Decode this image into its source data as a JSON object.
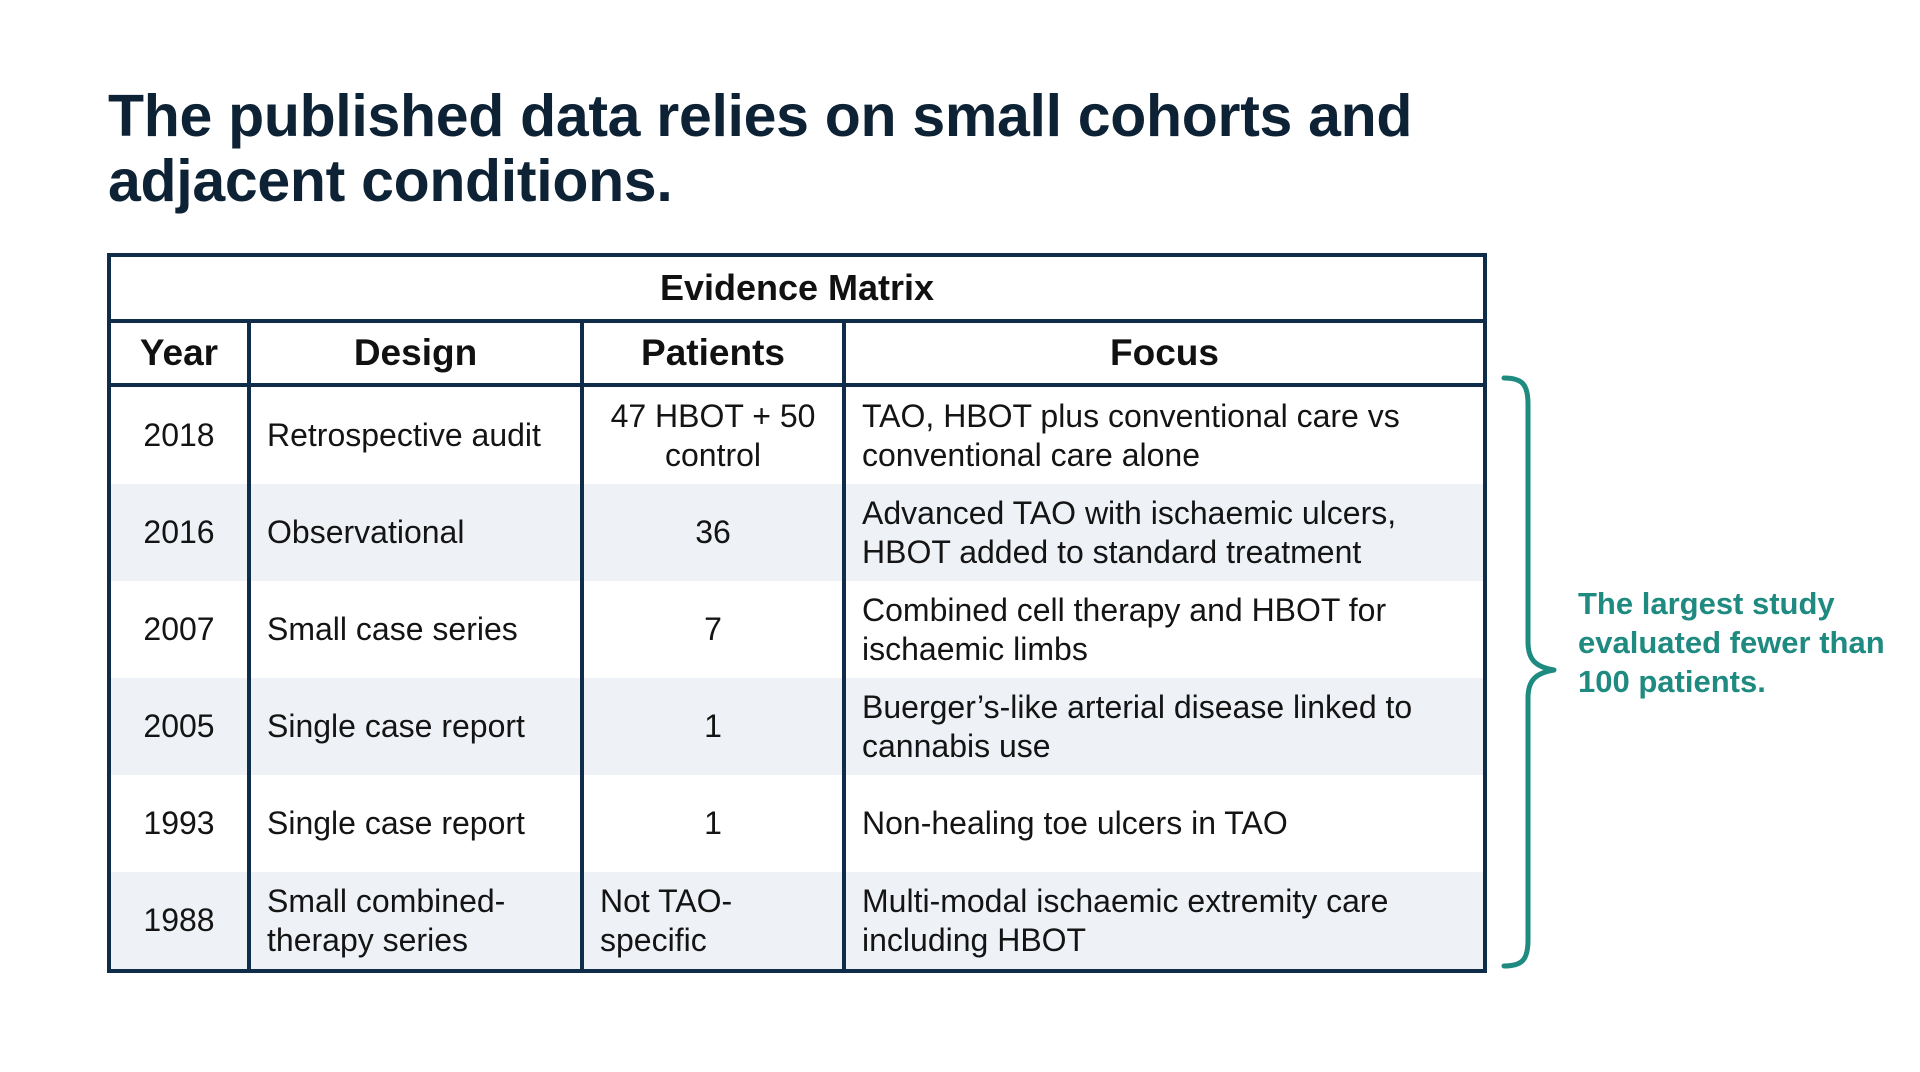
{
  "title": "The published data relies on small cohorts and adjacent conditions.",
  "table": {
    "caption": "Evidence Matrix",
    "headers": [
      "Year",
      "Design",
      "Patients",
      "Focus"
    ],
    "rows": [
      {
        "year": "2018",
        "design": "Retrospective audit",
        "patients": "47 HBOT + 50 control",
        "focus": "TAO, HBOT plus conventional care vs conventional care alone"
      },
      {
        "year": "2016",
        "design": "Observational",
        "patients": "36",
        "focus": "Advanced TAO with ischaemic ulcers, HBOT added to standard treatment"
      },
      {
        "year": "2007",
        "design": "Small case series",
        "patients": "7",
        "focus": "Combined cell therapy and HBOT for ischaemic limbs"
      },
      {
        "year": "2005",
        "design": "Single case report",
        "patients": "1",
        "focus": "Buerger’s-like arterial disease linked to cannabis use"
      },
      {
        "year": "1993",
        "design": "Single case report",
        "patients": "1",
        "focus": "Non-healing toe ulcers in TAO"
      },
      {
        "year": "1988",
        "design": "Small combined-therapy series",
        "patients": "Not TAO-specific",
        "focus": "Multi-modal ischaemic extremity care including HBOT"
      }
    ]
  },
  "callout": "The largest study evaluated fewer than 100 patients.",
  "colors": {
    "title": "#0e2235",
    "table_border": "#0f2d4b",
    "zebra_row": "#eef1f6",
    "accent": "#1f8a80"
  }
}
